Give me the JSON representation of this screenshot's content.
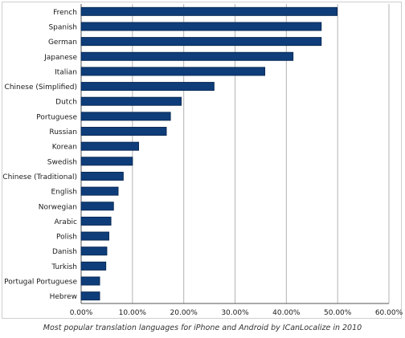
{
  "caption": "Most popular translation languages for iPhone and Android by ICanLocalize in 2010",
  "colors": {
    "bar_fill": "#0e3d7a",
    "bar_stroke": "#0a2a55",
    "grid": "#b3b3b3",
    "text": "#1a1a1a"
  },
  "chart_data": {
    "type": "bar",
    "orientation": "horizontal",
    "categories": [
      "French",
      "Spanish",
      "German",
      "Japanese",
      "Italian",
      "Chinese (Simplified)",
      "Dutch",
      "Portuguese",
      "Russian",
      "Korean",
      "Swedish",
      "Chinese (Traditional)",
      "English",
      "Norwegian",
      "Arabic",
      "Polish",
      "Danish",
      "Turkish",
      "Portugal Portuguese",
      "Hebrew"
    ],
    "values": [
      49.9,
      46.8,
      46.8,
      41.3,
      35.8,
      25.9,
      19.5,
      17.4,
      16.6,
      11.2,
      10.0,
      8.2,
      7.2,
      6.3,
      5.8,
      5.4,
      5.0,
      4.8,
      3.6,
      3.6
    ],
    "title": "",
    "xlabel": "",
    "ylabel": "",
    "xlim": [
      0,
      60
    ],
    "x_ticks": [
      "0.00%",
      "10.00%",
      "20.00%",
      "30.00%",
      "40.00%",
      "50.00%",
      "60.00%"
    ],
    "grid": "vertical",
    "legend": "none"
  }
}
